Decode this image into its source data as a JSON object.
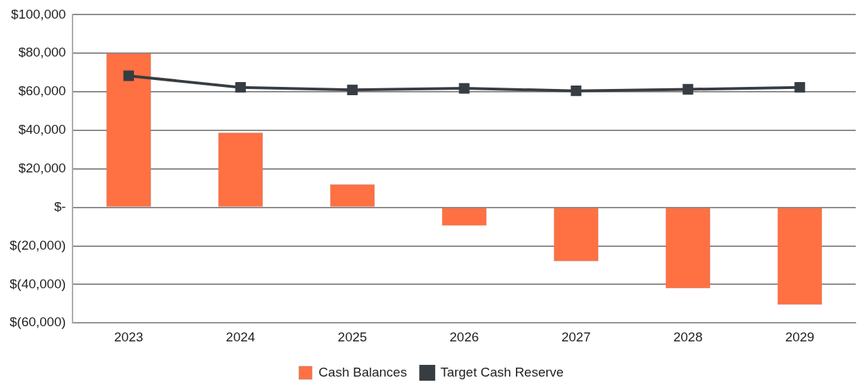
{
  "chart_data": {
    "type": "bar",
    "categories": [
      "2023",
      "2024",
      "2025",
      "2026",
      "2027",
      "2028",
      "2029"
    ],
    "series": [
      {
        "name": "Cash Balances",
        "color": "#ff7043",
        "values": [
          80000,
          38800,
          12000,
          -9500,
          -28000,
          -42000,
          -50500
        ]
      },
      {
        "name": "Target Cash Reserve",
        "type": "line",
        "color": "#373d42",
        "marker": "square",
        "values": [
          68300,
          62300,
          61000,
          61800,
          60500,
          61300,
          62300
        ]
      }
    ],
    "ylim": [
      -60000,
      100000
    ],
    "yticks": [
      {
        "value": -60000,
        "label": "$(60,000)"
      },
      {
        "value": -40000,
        "label": "$(40,000)"
      },
      {
        "value": -20000,
        "label": "$(20,000)"
      },
      {
        "value": 0,
        "label": "$-"
      },
      {
        "value": 20000,
        "label": "$20,000"
      },
      {
        "value": 40000,
        "label": "$40,000"
      },
      {
        "value": 60000,
        "label": "$60,000"
      },
      {
        "value": 80000,
        "label": "$80,000"
      },
      {
        "value": 100000,
        "label": "$100,000"
      }
    ],
    "grid": "y",
    "legend": "bottom"
  }
}
